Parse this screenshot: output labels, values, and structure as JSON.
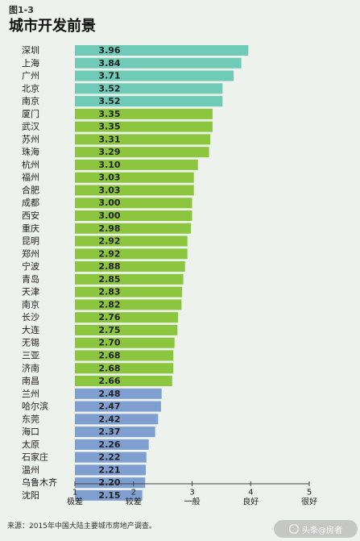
{
  "figure_label": "图1-3",
  "chart_data": {
    "type": "bar",
    "orientation": "horizontal",
    "title": "城市开发前景",
    "categories": [
      "深圳",
      "上海",
      "广州",
      "北京",
      "南京",
      "厦门",
      "武汉",
      "苏州",
      "珠海",
      "杭州",
      "福州",
      "合肥",
      "成都",
      "西安",
      "重庆",
      "昆明",
      "郑州",
      "宁波",
      "青岛",
      "天津",
      "南京",
      "长沙",
      "大连",
      "无锡",
      "三亚",
      "济南",
      "南昌",
      "兰州",
      "哈尔滨",
      "东莞",
      "海口",
      "太原",
      "石家庄",
      "温州",
      "乌鲁木齐",
      "沈阳"
    ],
    "values": [
      3.96,
      3.84,
      3.71,
      3.52,
      3.52,
      3.35,
      3.35,
      3.31,
      3.29,
      3.1,
      3.03,
      3.03,
      3.0,
      3.0,
      2.98,
      2.92,
      2.92,
      2.88,
      2.85,
      2.83,
      2.82,
      2.76,
      2.75,
      2.7,
      2.68,
      2.68,
      2.66,
      2.48,
      2.47,
      2.42,
      2.37,
      2.26,
      2.22,
      2.21,
      2.2,
      2.15
    ],
    "value_labels": [
      "3.96",
      "3.84",
      "3.71",
      "3.52",
      "3.52",
      "3.35",
      "3.35",
      "3.31",
      "3.29",
      "3.10",
      "3.03",
      "3.03",
      "3.00",
      "3.00",
      "2.98",
      "2.92",
      "2.92",
      "2.88",
      "2.85",
      "2.83",
      "2.82",
      "2.76",
      "2.75",
      "2.70",
      "2.68",
      "2.68",
      "2.66",
      "2.48",
      "2.47",
      "2.42",
      "2.37",
      "2.26",
      "2.22",
      "2.21",
      "2.20",
      "2.15"
    ],
    "groups": [
      0,
      0,
      0,
      0,
      0,
      1,
      1,
      1,
      1,
      1,
      1,
      1,
      1,
      1,
      1,
      1,
      1,
      1,
      1,
      1,
      1,
      1,
      1,
      1,
      1,
      1,
      1,
      2,
      2,
      2,
      2,
      2,
      2,
      2,
      2,
      2
    ],
    "group_colors": [
      "#6fcbb8",
      "#8cc63f",
      "#7f9fd0"
    ],
    "xlim": [
      1,
      5
    ],
    "ticks": [
      {
        "value": 1,
        "label": "1",
        "sublabel": "极差"
      },
      {
        "value": 2,
        "label": "2",
        "sublabel": "较差"
      },
      {
        "value": 3,
        "label": "3",
        "sublabel": "一般"
      },
      {
        "value": 4,
        "label": "4",
        "sublabel": "良好"
      },
      {
        "value": 5,
        "label": "5",
        "sublabel": "很好"
      }
    ],
    "grid": false
  },
  "source": "来源：2015年中国大陆主要城市房地产调查。",
  "watermark": "头条@房者"
}
